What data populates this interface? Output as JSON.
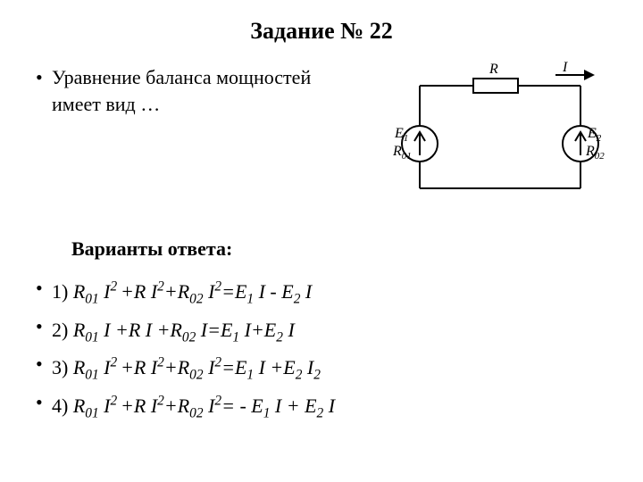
{
  "title": "Задание № 22",
  "question": {
    "line1": "Уравнение баланса мощностей",
    "line2": "имеет вид …"
  },
  "answers_heading": "Варианты ответа:",
  "circuit": {
    "R_label": "R",
    "I_label": "I",
    "E1_label": "E",
    "E1_sub": "1",
    "R01_label": "R",
    "R01_sub": "01",
    "E2_label": "E",
    "E2_sub": "2",
    "R02_label": "R",
    "R02_sub": "02",
    "stroke": "#000000",
    "stroke_width": 2,
    "font_size": 16,
    "font_size_sub": 11
  },
  "options": [
    {
      "n": "1)",
      "html": "R<sub>01</sub> I<sup>2 </sup>+R I<sup>2</sup>+R<sub>02</sub> I<sup>2</sup>=E<sub>1</sub> I - E<sub>2</sub> I"
    },
    {
      "n": "2)",
      "html": "R<sub>01</sub> I +R I +R<sub>02</sub> I=E<sub>1</sub> I+E<sub>2</sub> I"
    },
    {
      "n": "3)",
      "html": "R<sub>01</sub> I<sup>2 </sup>+R I<sup>2</sup>+R<sub>02</sub> I<sup>2</sup>=E<sub>1</sub> I +E<sub>2</sub> I<sub>2</sub>"
    },
    {
      "n": "4)",
      "html": "R<sub>01</sub> I<sup>2 </sup>+R I<sup>2</sup>+R<sub>02</sub> I<sup>2</sup>= - E<sub>1</sub> I + E<sub>2</sub> I"
    }
  ]
}
